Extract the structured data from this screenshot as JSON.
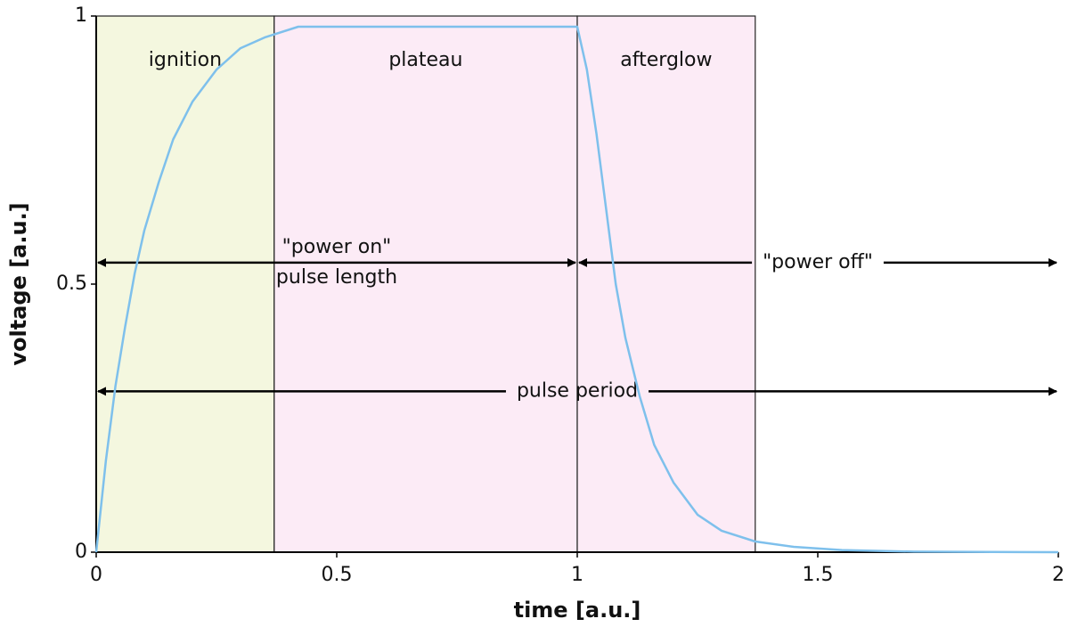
{
  "chart_data": {
    "type": "line",
    "xlabel": "time [a.u.]",
    "ylabel": "voltage [a.u.]",
    "xlim": [
      0,
      2
    ],
    "xticks": [
      0,
      0.5,
      1,
      1.5,
      2
    ],
    "ylim": [
      0,
      1
    ],
    "yticks": [
      0,
      0.5,
      1
    ],
    "x": [
      0,
      0.02,
      0.04,
      0.06,
      0.08,
      0.1,
      0.13,
      0.16,
      0.2,
      0.25,
      0.3,
      0.35,
      0.42,
      1.0,
      1.02,
      1.04,
      1.06,
      1.08,
      1.1,
      1.13,
      1.16,
      1.2,
      1.25,
      1.3,
      1.37,
      1.45,
      1.55,
      1.7,
      2.0
    ],
    "series": [
      {
        "color": "#7ec0ec",
        "values": [
          0,
          0.17,
          0.31,
          0.42,
          0.52,
          0.6,
          0.69,
          0.77,
          0.84,
          0.9,
          0.94,
          0.96,
          0.98,
          0.98,
          0.9,
          0.78,
          0.64,
          0.5,
          0.4,
          0.29,
          0.2,
          0.13,
          0.07,
          0.04,
          0.02,
          0.01,
          0.004,
          0.001,
          0
        ]
      }
    ],
    "regions": [
      {
        "label": "ignition",
        "start": 0,
        "end": 0.37,
        "color": "#f4f7df"
      },
      {
        "label": "plateau",
        "start": 0.37,
        "end": 1.0,
        "color": "#fcebf6"
      },
      {
        "label": "afterglow",
        "start": 1.0,
        "end": 1.37,
        "color": "#fcebf6"
      }
    ],
    "arrows": [
      {
        "text": [
          "\"power on\"",
          "pulse length"
        ],
        "start": 0,
        "end": 1.0,
        "y": 0.54
      },
      {
        "text": [
          "\"power off\""
        ],
        "start": 1.0,
        "end": 2,
        "y": 0.54
      },
      {
        "text": [
          "pulse period"
        ],
        "start": 0,
        "end": 2,
        "y": 0.3
      }
    ]
  }
}
